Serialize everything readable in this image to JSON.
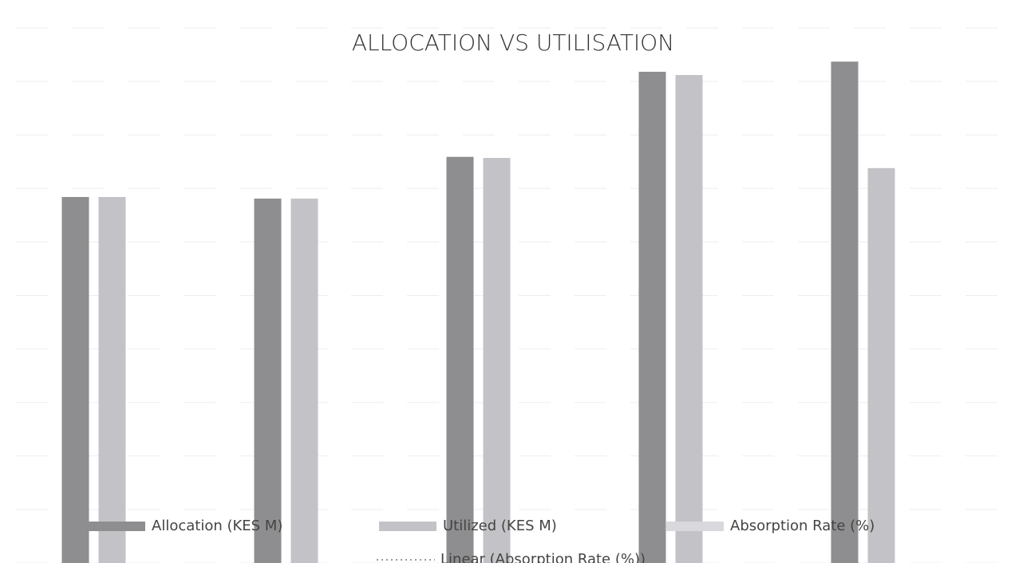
{
  "chart_data": {
    "type": "bar",
    "title": "ALLOCATION VS UTILISATION",
    "categories": [
      null,
      null,
      null,
      null,
      null
    ],
    "series": [
      {
        "name": "Allocation (KES M)",
        "color": "#8e8e90",
        "values": [
          6.84,
          6.81,
          7.59,
          9.18,
          9.37
        ]
      },
      {
        "name": "Utilized (KES M)",
        "color": "#c3c3c7",
        "values": [
          6.84,
          6.81,
          7.57,
          9.12,
          7.38
        ]
      },
      {
        "name": "Absorption Rate (%)",
        "color": "#d9d9dd",
        "type": "line",
        "values": [
          null,
          null,
          null,
          null,
          null
        ]
      },
      {
        "name": "Linear (Absorption Rate (%))",
        "color": "#9a9a9a",
        "type": "line",
        "dotted": true,
        "values": [
          null,
          null,
          null,
          null,
          null
        ]
      }
    ],
    "ylim": [
      0,
      10
    ],
    "yticks": [
      0,
      1,
      2,
      3,
      4,
      5,
      6,
      7,
      8,
      9,
      10
    ],
    "grid": true,
    "legend": "bottom"
  }
}
